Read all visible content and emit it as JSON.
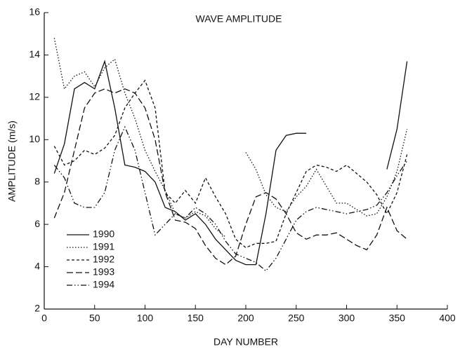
{
  "chart_data": {
    "type": "line",
    "title": "WAVE AMPLITUDE",
    "x_label": "DAY NUMBER",
    "y_label": "AMPLITUDE (m/s)",
    "x": [
      10,
      20,
      30,
      40,
      50,
      60,
      70,
      80,
      90,
      100,
      110,
      120,
      130,
      140,
      150,
      160,
      170,
      180,
      190,
      200,
      210,
      220,
      230,
      240,
      250,
      260,
      270,
      280,
      290,
      300,
      310,
      320,
      330,
      340,
      350,
      360
    ],
    "series": [
      {
        "name": "1990",
        "color": "#111111",
        "values": [
          8.4,
          9.8,
          12.4,
          12.7,
          12.4,
          13.7,
          11.5,
          8.8,
          8.7,
          8.5,
          8.0,
          6.8,
          6.6,
          6.2,
          6.5,
          6.0,
          5.3,
          4.8,
          4.3,
          4.1,
          4.1,
          6.5,
          9.5,
          10.2,
          10.3,
          10.3,
          null,
          null,
          null,
          null,
          null,
          null,
          null,
          8.6,
          10.5,
          13.7
        ]
      },
      {
        "name": "1991",
        "color": "#111111",
        "values": [
          14.8,
          12.4,
          13.0,
          13.2,
          12.5,
          13.4,
          13.8,
          12.2,
          11.0,
          9.5,
          8.5,
          7.6,
          6.5,
          6.3,
          6.6,
          6.4,
          5.8,
          5.4,
          null,
          9.4,
          8.6,
          7.4,
          6.8,
          6.6,
          7.3,
          7.8,
          8.6,
          7.8,
          7.0,
          7.0,
          6.7,
          6.4,
          6.5,
          7.3,
          8.5,
          10.5
        ]
      },
      {
        "name": "1992",
        "color": "#111111",
        "values": [
          9.7,
          8.8,
          9.0,
          9.5,
          9.3,
          9.6,
          10.2,
          11.5,
          12.2,
          12.8,
          11.5,
          7.5,
          7.0,
          7.6,
          7.0,
          8.2,
          7.3,
          6.5,
          5.3,
          4.9,
          5.1,
          5.1,
          5.2,
          6.5,
          7.5,
          8.5,
          8.8,
          8.7,
          8.5,
          8.8,
          8.4,
          8.0,
          7.4,
          6.5,
          7.5,
          9.3
        ]
      },
      {
        "name": "1993",
        "color": "#111111",
        "values": [
          6.3,
          7.5,
          9.5,
          11.5,
          12.2,
          12.4,
          12.2,
          12.4,
          12.2,
          11.5,
          10.0,
          7.5,
          6.2,
          6.1,
          5.8,
          5.0,
          4.4,
          4.1,
          4.5,
          6.0,
          7.3,
          7.5,
          7.2,
          6.5,
          5.6,
          5.3,
          5.5,
          5.5,
          5.6,
          5.3,
          5.0,
          4.8,
          5.5,
          6.8,
          5.7,
          5.3
        ]
      },
      {
        "name": "1994",
        "color": "#111111",
        "values": [
          8.8,
          8.2,
          7.0,
          6.8,
          6.8,
          7.5,
          9.5,
          10.6,
          9.5,
          7.5,
          5.5,
          6.0,
          6.5,
          6.3,
          6.8,
          6.5,
          6.0,
          5.2,
          4.6,
          4.4,
          4.2,
          3.8,
          4.4,
          5.3,
          6.2,
          6.6,
          6.8,
          6.7,
          6.6,
          6.5,
          6.6,
          6.7,
          6.9,
          7.5,
          8.3,
          9.0
        ]
      }
    ],
    "xlim": [
      0,
      400
    ],
    "ylim": [
      2,
      16
    ],
    "xticks": [
      0,
      50,
      100,
      150,
      200,
      250,
      300,
      350,
      400
    ],
    "yticks": [
      2,
      4,
      6,
      8,
      10,
      12,
      14,
      16
    ],
    "grid": false
  }
}
